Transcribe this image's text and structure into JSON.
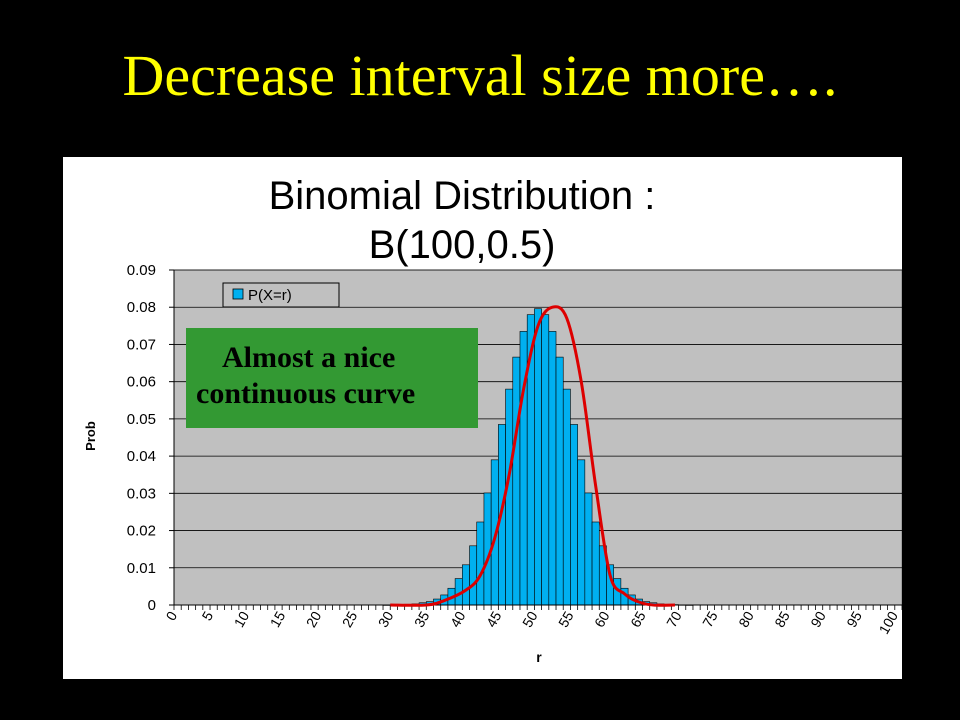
{
  "slide": {
    "title": "Decrease interval size more…."
  },
  "callout": {
    "line1": "Almost a nice",
    "line2": "continuous curve"
  },
  "colors": {
    "background": "#000000",
    "title": "#ffff00",
    "plot_area": "#c0c0c0",
    "bars": "#00b0f0",
    "curve": "#dd0000",
    "callout": "#339933"
  },
  "chart_data": {
    "type": "bar",
    "title_lines": [
      "Binomial Distribution :",
      "B(100,0.5)"
    ],
    "xlabel": "r",
    "ylabel": "Prob",
    "legend": {
      "label": "P(X=r)",
      "position": "top-left"
    },
    "grid": true,
    "ylim": [
      0,
      0.09
    ],
    "y_ticks": [
      "0",
      "0.01",
      "0.02",
      "0.03",
      "0.04",
      "0.05",
      "0.06",
      "0.07",
      "0.08",
      "0.09"
    ],
    "x_ticks": [
      "0",
      "5",
      "10",
      "15",
      "20",
      "25",
      "30",
      "35",
      "40",
      "45",
      "50",
      "55",
      "60",
      "65",
      "70",
      "75",
      "80",
      "85",
      "90",
      "95",
      "100"
    ],
    "categories": [
      0,
      1,
      2,
      3,
      4,
      5,
      6,
      7,
      8,
      9,
      10,
      11,
      12,
      13,
      14,
      15,
      16,
      17,
      18,
      19,
      20,
      21,
      22,
      23,
      24,
      25,
      26,
      27,
      28,
      29,
      30,
      31,
      32,
      33,
      34,
      35,
      36,
      37,
      38,
      39,
      40,
      41,
      42,
      43,
      44,
      45,
      46,
      47,
      48,
      49,
      50,
      51,
      52,
      53,
      54,
      55,
      56,
      57,
      58,
      59,
      60,
      61,
      62,
      63,
      64,
      65,
      66,
      67,
      68,
      69,
      70,
      71,
      72,
      73,
      74,
      75,
      76,
      77,
      78,
      79,
      80,
      81,
      82,
      83,
      84,
      85,
      86,
      87,
      88,
      89,
      90,
      91,
      92,
      93,
      94,
      95,
      96,
      97,
      98,
      99,
      100
    ],
    "series": [
      {
        "name": "P(X=r)",
        "values": [
          0,
          0,
          0,
          0,
          0,
          0,
          0,
          0,
          0,
          0,
          0,
          0,
          0,
          0,
          0,
          0,
          0,
          0,
          0,
          0,
          0,
          0,
          0,
          0,
          0,
          0,
          0,
          0,
          0,
          2e-05,
          5e-05,
          0.0001,
          0.0002,
          0.0003,
          0.0006,
          0.0009,
          0.0016,
          0.0027,
          0.0045,
          0.0071,
          0.0108,
          0.0159,
          0.0223,
          0.0301,
          0.039,
          0.0485,
          0.058,
          0.0666,
          0.0735,
          0.078,
          0.0796,
          0.078,
          0.0735,
          0.0666,
          0.058,
          0.0485,
          0.039,
          0.0301,
          0.0223,
          0.0159,
          0.0108,
          0.0071,
          0.0045,
          0.0027,
          0.0016,
          0.0009,
          0.0006,
          0.0003,
          0.0002,
          0.0001,
          5e-05,
          2e-05,
          0,
          0,
          0,
          0,
          0,
          0,
          0,
          0,
          0,
          0,
          0,
          0,
          0,
          0,
          0,
          0,
          0,
          0,
          0,
          0,
          0,
          0,
          0,
          0,
          0,
          0,
          0,
          0,
          0
        ]
      }
    ],
    "overlay_curve": {
      "x": [
        29.5,
        34.5,
        37,
        40,
        42,
        44,
        46,
        48,
        50,
        52,
        54,
        56,
        58,
        60,
        62,
        64,
        66,
        69
      ],
      "y": [
        0,
        0,
        0.0012,
        0.004,
        0.008,
        0.018,
        0.035,
        0.058,
        0.075,
        0.08,
        0.077,
        0.06,
        0.032,
        0.008,
        0.003,
        0.0008,
        0,
        0
      ]
    }
  }
}
